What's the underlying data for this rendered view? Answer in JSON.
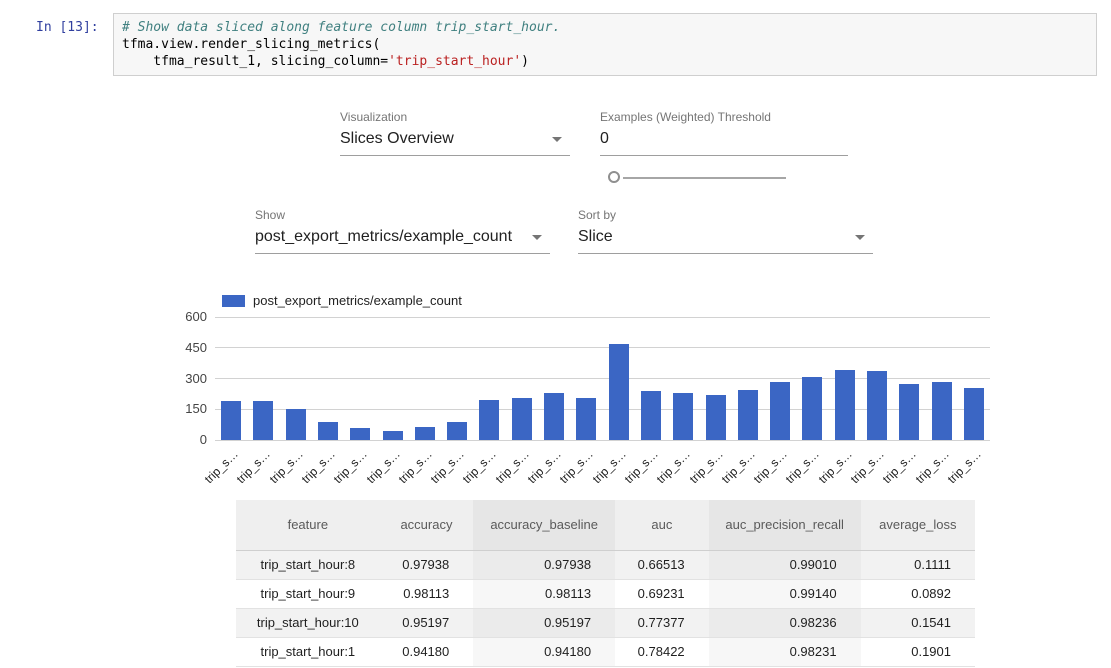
{
  "notebook": {
    "prompt": "In [13]:",
    "code": {
      "comment": "# Show data sliced along feature column trip_start_hour.",
      "line2": "tfma.view.render_slicing_metrics(",
      "line3_pre": "    tfma_result_1, slicing_column=",
      "line3_string": "'trip_start_hour'",
      "line3_post": ")"
    }
  },
  "controls": {
    "visualization": {
      "label": "Visualization",
      "value": "Slices Overview"
    },
    "threshold": {
      "label": "Examples (Weighted) Threshold",
      "value": "0"
    },
    "show": {
      "label": "Show",
      "value": "post_export_metrics/example_count"
    },
    "sort": {
      "label": "Sort by",
      "value": "Slice"
    }
  },
  "chart_data": {
    "type": "bar",
    "title": "",
    "legend": "post_export_metrics/example_count",
    "legend_position": "top",
    "series_color": "#3b66c4",
    "grid": true,
    "ylim": [
      0,
      600
    ],
    "yticks": [
      0,
      150,
      300,
      450,
      600
    ],
    "categories": [
      "trip_s…",
      "trip_s…",
      "trip_s…",
      "trip_s…",
      "trip_s…",
      "trip_s…",
      "trip_s…",
      "trip_s…",
      "trip_s…",
      "trip_s…",
      "trip_s…",
      "trip_s…",
      "trip_s…",
      "trip_s…",
      "trip_s…",
      "trip_s…",
      "trip_s…",
      "trip_s…",
      "trip_s…",
      "trip_s…",
      "trip_s…",
      "trip_s…",
      "trip_s…",
      "trip_s…"
    ],
    "values": [
      190,
      188,
      150,
      87,
      58,
      45,
      64,
      88,
      193,
      207,
      228,
      207,
      468,
      237,
      231,
      219,
      243,
      284,
      306,
      340,
      338,
      274,
      284,
      252
    ]
  },
  "table": {
    "headers": [
      "feature",
      "accuracy",
      "accuracy_baseline",
      "auc",
      "auc_precision_recall",
      "average_loss"
    ],
    "rows": [
      [
        "trip_start_hour:8",
        "0.97938",
        "0.97938",
        "0.66513",
        "0.99010",
        "0.1111"
      ],
      [
        "trip_start_hour:9",
        "0.98113",
        "0.98113",
        "0.69231",
        "0.99140",
        "0.0892"
      ],
      [
        "trip_start_hour:10",
        "0.95197",
        "0.95197",
        "0.77377",
        "0.98236",
        "0.1541"
      ],
      [
        "trip_start_hour:1",
        "0.94180",
        "0.94180",
        "0.78422",
        "0.98231",
        "0.1901"
      ]
    ]
  }
}
